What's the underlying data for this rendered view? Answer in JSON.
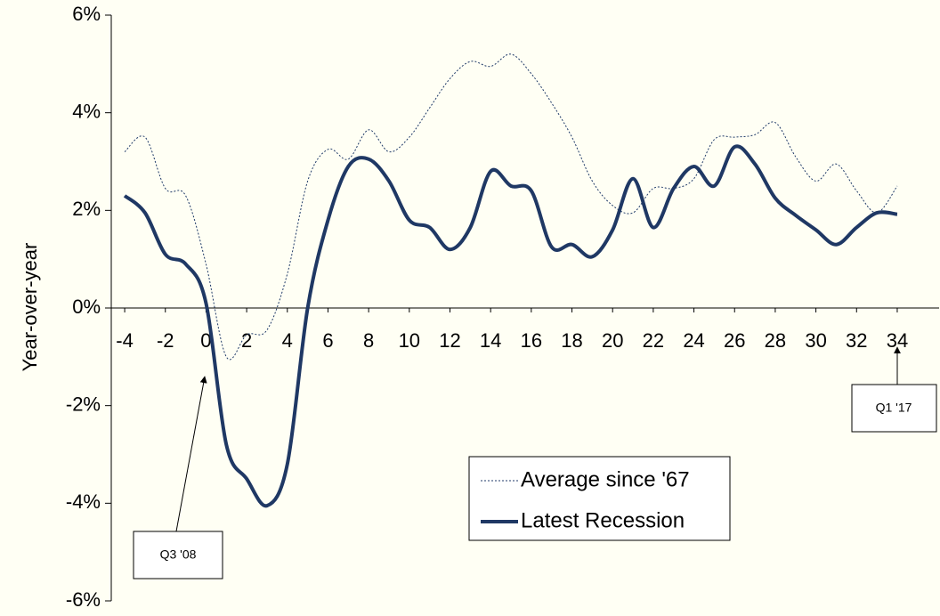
{
  "chart_data": {
    "type": "line",
    "ylabel": "Year-over-year",
    "x": [
      -4,
      -3,
      -2,
      -1,
      0,
      1,
      2,
      3,
      4,
      5,
      6,
      7,
      8,
      9,
      10,
      11,
      12,
      13,
      14,
      15,
      16,
      17,
      18,
      19,
      20,
      21,
      22,
      23,
      24,
      25,
      26,
      27,
      28,
      29,
      30,
      31,
      32,
      33,
      34
    ],
    "series": [
      {
        "name": "Average since '67",
        "color": "#1f3a68",
        "dashed": true,
        "width": 1,
        "values": [
          3.2,
          3.5,
          2.45,
          2.3,
          0.9,
          -1.0,
          -0.55,
          -0.45,
          0.7,
          2.6,
          3.25,
          3.05,
          3.65,
          3.2,
          3.5,
          4.1,
          4.7,
          5.05,
          4.95,
          5.2,
          4.8,
          4.2,
          3.5,
          2.6,
          2.1,
          1.95,
          2.45,
          2.45,
          2.65,
          3.45,
          3.5,
          3.55,
          3.8,
          3.1,
          2.6,
          2.95,
          2.4,
          1.95,
          2.5
        ]
      },
      {
        "name": "Latest Recession",
        "color": "#1f3864",
        "dashed": false,
        "width": 4,
        "values": [
          2.3,
          1.95,
          1.1,
          0.9,
          0.1,
          -2.8,
          -3.5,
          -4.05,
          -3.2,
          0.0,
          1.8,
          2.9,
          3.05,
          2.6,
          1.8,
          1.65,
          1.2,
          1.65,
          2.8,
          2.5,
          2.4,
          1.25,
          1.3,
          1.05,
          1.6,
          2.65,
          1.65,
          2.45,
          2.9,
          2.5,
          3.3,
          2.95,
          2.25,
          1.9,
          1.6,
          1.3,
          1.65,
          1.95,
          1.92
        ]
      }
    ],
    "xlim": [
      -4.66,
      36.06
    ],
    "ylim": [
      -6,
      6
    ],
    "xticks": [
      -4,
      -2,
      0,
      2,
      4,
      6,
      8,
      10,
      12,
      14,
      16,
      18,
      20,
      22,
      24,
      26,
      28,
      30,
      32,
      34
    ],
    "yticks": [
      {
        "value": -6,
        "label": "-6%"
      },
      {
        "value": -4,
        "label": "-4%"
      },
      {
        "value": -2,
        "label": "-2%"
      },
      {
        "value": 0,
        "label": "0%"
      },
      {
        "value": 2,
        "label": "2%"
      },
      {
        "value": 4,
        "label": "4%"
      },
      {
        "value": 6,
        "label": "6%"
      }
    ],
    "annotations": [
      "Q3 '08",
      "Q1 '17"
    ],
    "legend": true,
    "background": "#fffff4"
  }
}
